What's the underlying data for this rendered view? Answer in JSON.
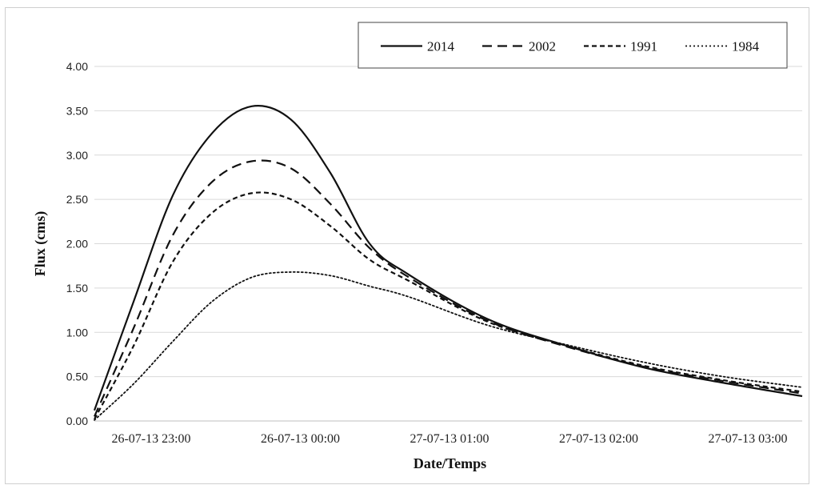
{
  "chart_data": {
    "type": "line",
    "title": "",
    "xlabel": "Date/Temps",
    "ylabel": "Flux (cms)",
    "ylim": [
      0,
      4
    ],
    "yticks": [
      "0.00",
      "0.50",
      "1.00",
      "1.50",
      "2.00",
      "2.50",
      "3.00",
      "3.50",
      "4.00"
    ],
    "x_tick_labels": [
      "26-07-13 23:00",
      "26-07-13 00:00",
      "27-07-13 01:00",
      "27-07-13 02:00",
      "27-07-13 03:00"
    ],
    "x_hours": [
      0,
      0.25,
      0.5,
      0.75,
      1.0,
      1.25,
      1.5,
      1.75,
      2.0,
      2.5,
      3.0,
      3.5,
      4.0,
      4.5
    ],
    "grid": "horizontal",
    "legend_position": "top-right",
    "series": [
      {
        "name": "2014",
        "style": "solid",
        "values": [
          0.12,
          1.35,
          2.55,
          3.25,
          3.55,
          3.4,
          2.8,
          2.0,
          1.65,
          1.15,
          0.85,
          0.6,
          0.43,
          0.28
        ]
      },
      {
        "name": "2002",
        "style": "dashed",
        "values": [
          0.05,
          1.05,
          2.1,
          2.7,
          2.93,
          2.85,
          2.45,
          1.95,
          1.62,
          1.13,
          0.84,
          0.61,
          0.45,
          0.31
        ]
      },
      {
        "name": "1991",
        "style": "short-dashed",
        "values": [
          0.02,
          0.85,
          1.8,
          2.35,
          2.57,
          2.5,
          2.2,
          1.82,
          1.58,
          1.12,
          0.85,
          0.62,
          0.46,
          0.33
        ]
      },
      {
        "name": "1984",
        "style": "dotted",
        "values": [
          0.01,
          0.42,
          0.9,
          1.35,
          1.62,
          1.68,
          1.64,
          1.52,
          1.4,
          1.08,
          0.86,
          0.66,
          0.5,
          0.38
        ]
      }
    ]
  }
}
